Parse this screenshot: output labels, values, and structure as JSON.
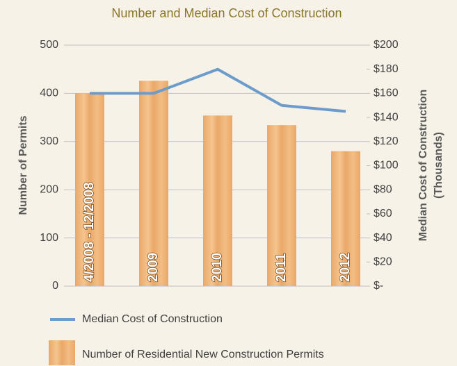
{
  "chart_data": {
    "type": "bar_line",
    "title": "Number and Median Cost of Construction",
    "y_label": "Number of Permits",
    "y2_label": "Median Cost of Construction (Thousands)",
    "categories": [
      "4/2008 - 12/2008",
      "2009",
      "2010",
      "2011",
      "2012"
    ],
    "series": [
      {
        "name": "Number of Residential New Construction Permits",
        "type": "bar",
        "color": "#e9a868",
        "values": [
          400,
          426,
          354,
          334,
          280
        ]
      },
      {
        "name": "Median Cost of Construction",
        "type": "line",
        "axis": "y2",
        "color": "#6b9ccc",
        "values": [
          160,
          160,
          180,
          150,
          145
        ]
      }
    ],
    "ylim": [
      0,
      500
    ],
    "yticks": [
      0,
      100,
      200,
      300,
      400,
      500
    ],
    "y2lim": [
      0,
      200
    ],
    "y2ticks": [
      {
        "value": 0,
        "label": "$-"
      },
      {
        "value": 20,
        "label": "$20"
      },
      {
        "value": 40,
        "label": "$40"
      },
      {
        "value": 60,
        "label": "$60"
      },
      {
        "value": 80,
        "label": "$80"
      },
      {
        "value": 100,
        "label": "$100"
      },
      {
        "value": 120,
        "label": "$120"
      },
      {
        "value": 140,
        "label": "$140"
      },
      {
        "value": 160,
        "label": "$160"
      },
      {
        "value": 180,
        "label": "$180"
      },
      {
        "value": 200,
        "label": "$200"
      }
    ],
    "grid": true
  }
}
